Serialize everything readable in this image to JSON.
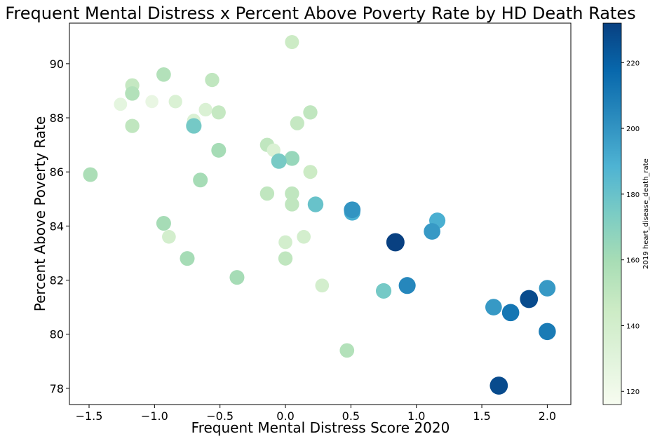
{
  "chart_data": {
    "type": "scatter",
    "title": "Frequent Mental Distress x Percent Above Poverty Rate by HD Death Rates",
    "xlabel": "Frequent Mental Distress Score 2020",
    "ylabel": "Percent Above Poverty Rate",
    "xlim": [
      -1.65,
      2.18
    ],
    "ylim": [
      77.4,
      91.5
    ],
    "xticks": [
      -1.5,
      -1.0,
      -0.5,
      0.0,
      0.5,
      1.0,
      1.5,
      2.0
    ],
    "xtick_labels": [
      "−1.5",
      "−1.0",
      "−0.5",
      "0.0",
      "0.5",
      "1.0",
      "1.5",
      "2.0"
    ],
    "yticks": [
      78,
      80,
      82,
      84,
      86,
      88,
      90
    ],
    "ytick_labels": [
      "78",
      "80",
      "82",
      "84",
      "86",
      "88",
      "90"
    ],
    "colorbar": {
      "label": "2019 heart_disease_death_rate",
      "range": [
        116,
        232
      ],
      "ticks": [
        120,
        140,
        160,
        180,
        200,
        220
      ],
      "tick_labels": [
        "120",
        "140",
        "160",
        "180",
        "200",
        "220"
      ],
      "colormap": "GnBu",
      "colors": [
        "#f7fcf0",
        "#e0f3db",
        "#ccebc5",
        "#a8ddb5",
        "#7bccc4",
        "#4eb3d3",
        "#2b8cbe",
        "#0868ac",
        "#084081"
      ]
    },
    "grid": false,
    "points": [
      {
        "x": 0.05,
        "y": 90.8,
        "c": 145
      },
      {
        "x": -0.93,
        "y": 89.6,
        "c": 155
      },
      {
        "x": -0.56,
        "y": 89.4,
        "c": 150
      },
      {
        "x": -1.17,
        "y": 89.2,
        "c": 148
      },
      {
        "x": -1.17,
        "y": 88.9,
        "c": 155
      },
      {
        "x": -0.84,
        "y": 88.6,
        "c": 135
      },
      {
        "x": -1.02,
        "y": 88.6,
        "c": 125
      },
      {
        "x": -1.26,
        "y": 88.5,
        "c": 128
      },
      {
        "x": -0.61,
        "y": 88.3,
        "c": 135
      },
      {
        "x": -0.51,
        "y": 88.2,
        "c": 148
      },
      {
        "x": 0.19,
        "y": 88.2,
        "c": 150
      },
      {
        "x": -0.7,
        "y": 87.9,
        "c": 135
      },
      {
        "x": 0.09,
        "y": 87.8,
        "c": 148
      },
      {
        "x": -1.17,
        "y": 87.7,
        "c": 150
      },
      {
        "x": -0.7,
        "y": 87.7,
        "c": 176
      },
      {
        "x": -0.14,
        "y": 87.0,
        "c": 150
      },
      {
        "x": -0.51,
        "y": 86.8,
        "c": 160
      },
      {
        "x": -0.09,
        "y": 86.8,
        "c": 135
      },
      {
        "x": 0.05,
        "y": 86.5,
        "c": 165
      },
      {
        "x": -0.05,
        "y": 86.4,
        "c": 175
      },
      {
        "x": 0.19,
        "y": 86.0,
        "c": 145
      },
      {
        "x": -1.49,
        "y": 85.9,
        "c": 158
      },
      {
        "x": -0.65,
        "y": 85.7,
        "c": 160
      },
      {
        "x": -0.14,
        "y": 85.2,
        "c": 150
      },
      {
        "x": 0.05,
        "y": 85.2,
        "c": 150
      },
      {
        "x": 0.05,
        "y": 84.8,
        "c": 150
      },
      {
        "x": 0.23,
        "y": 84.8,
        "c": 180
      },
      {
        "x": 0.51,
        "y": 84.5,
        "c": 190
      },
      {
        "x": 0.51,
        "y": 84.6,
        "c": 200
      },
      {
        "x": 1.16,
        "y": 84.2,
        "c": 190
      },
      {
        "x": -0.93,
        "y": 84.1,
        "c": 160
      },
      {
        "x": 1.12,
        "y": 83.8,
        "c": 198
      },
      {
        "x": -0.89,
        "y": 83.6,
        "c": 140
      },
      {
        "x": 0.14,
        "y": 83.6,
        "c": 140
      },
      {
        "x": 0.0,
        "y": 83.4,
        "c": 140
      },
      {
        "x": 0.84,
        "y": 83.4,
        "c": 232
      },
      {
        "x": -0.75,
        "y": 82.8,
        "c": 160
      },
      {
        "x": 0.0,
        "y": 82.8,
        "c": 150
      },
      {
        "x": -0.37,
        "y": 82.1,
        "c": 160
      },
      {
        "x": 0.28,
        "y": 81.8,
        "c": 140
      },
      {
        "x": 0.93,
        "y": 81.8,
        "c": 205
      },
      {
        "x": 0.75,
        "y": 81.6,
        "c": 176
      },
      {
        "x": 2.0,
        "y": 81.7,
        "c": 198
      },
      {
        "x": 1.86,
        "y": 81.3,
        "c": 228
      },
      {
        "x": 1.59,
        "y": 81.0,
        "c": 198
      },
      {
        "x": 1.72,
        "y": 80.8,
        "c": 212
      },
      {
        "x": 2.0,
        "y": 80.1,
        "c": 210
      },
      {
        "x": 0.47,
        "y": 79.4,
        "c": 155
      },
      {
        "x": 1.63,
        "y": 78.1,
        "c": 228
      }
    ]
  }
}
